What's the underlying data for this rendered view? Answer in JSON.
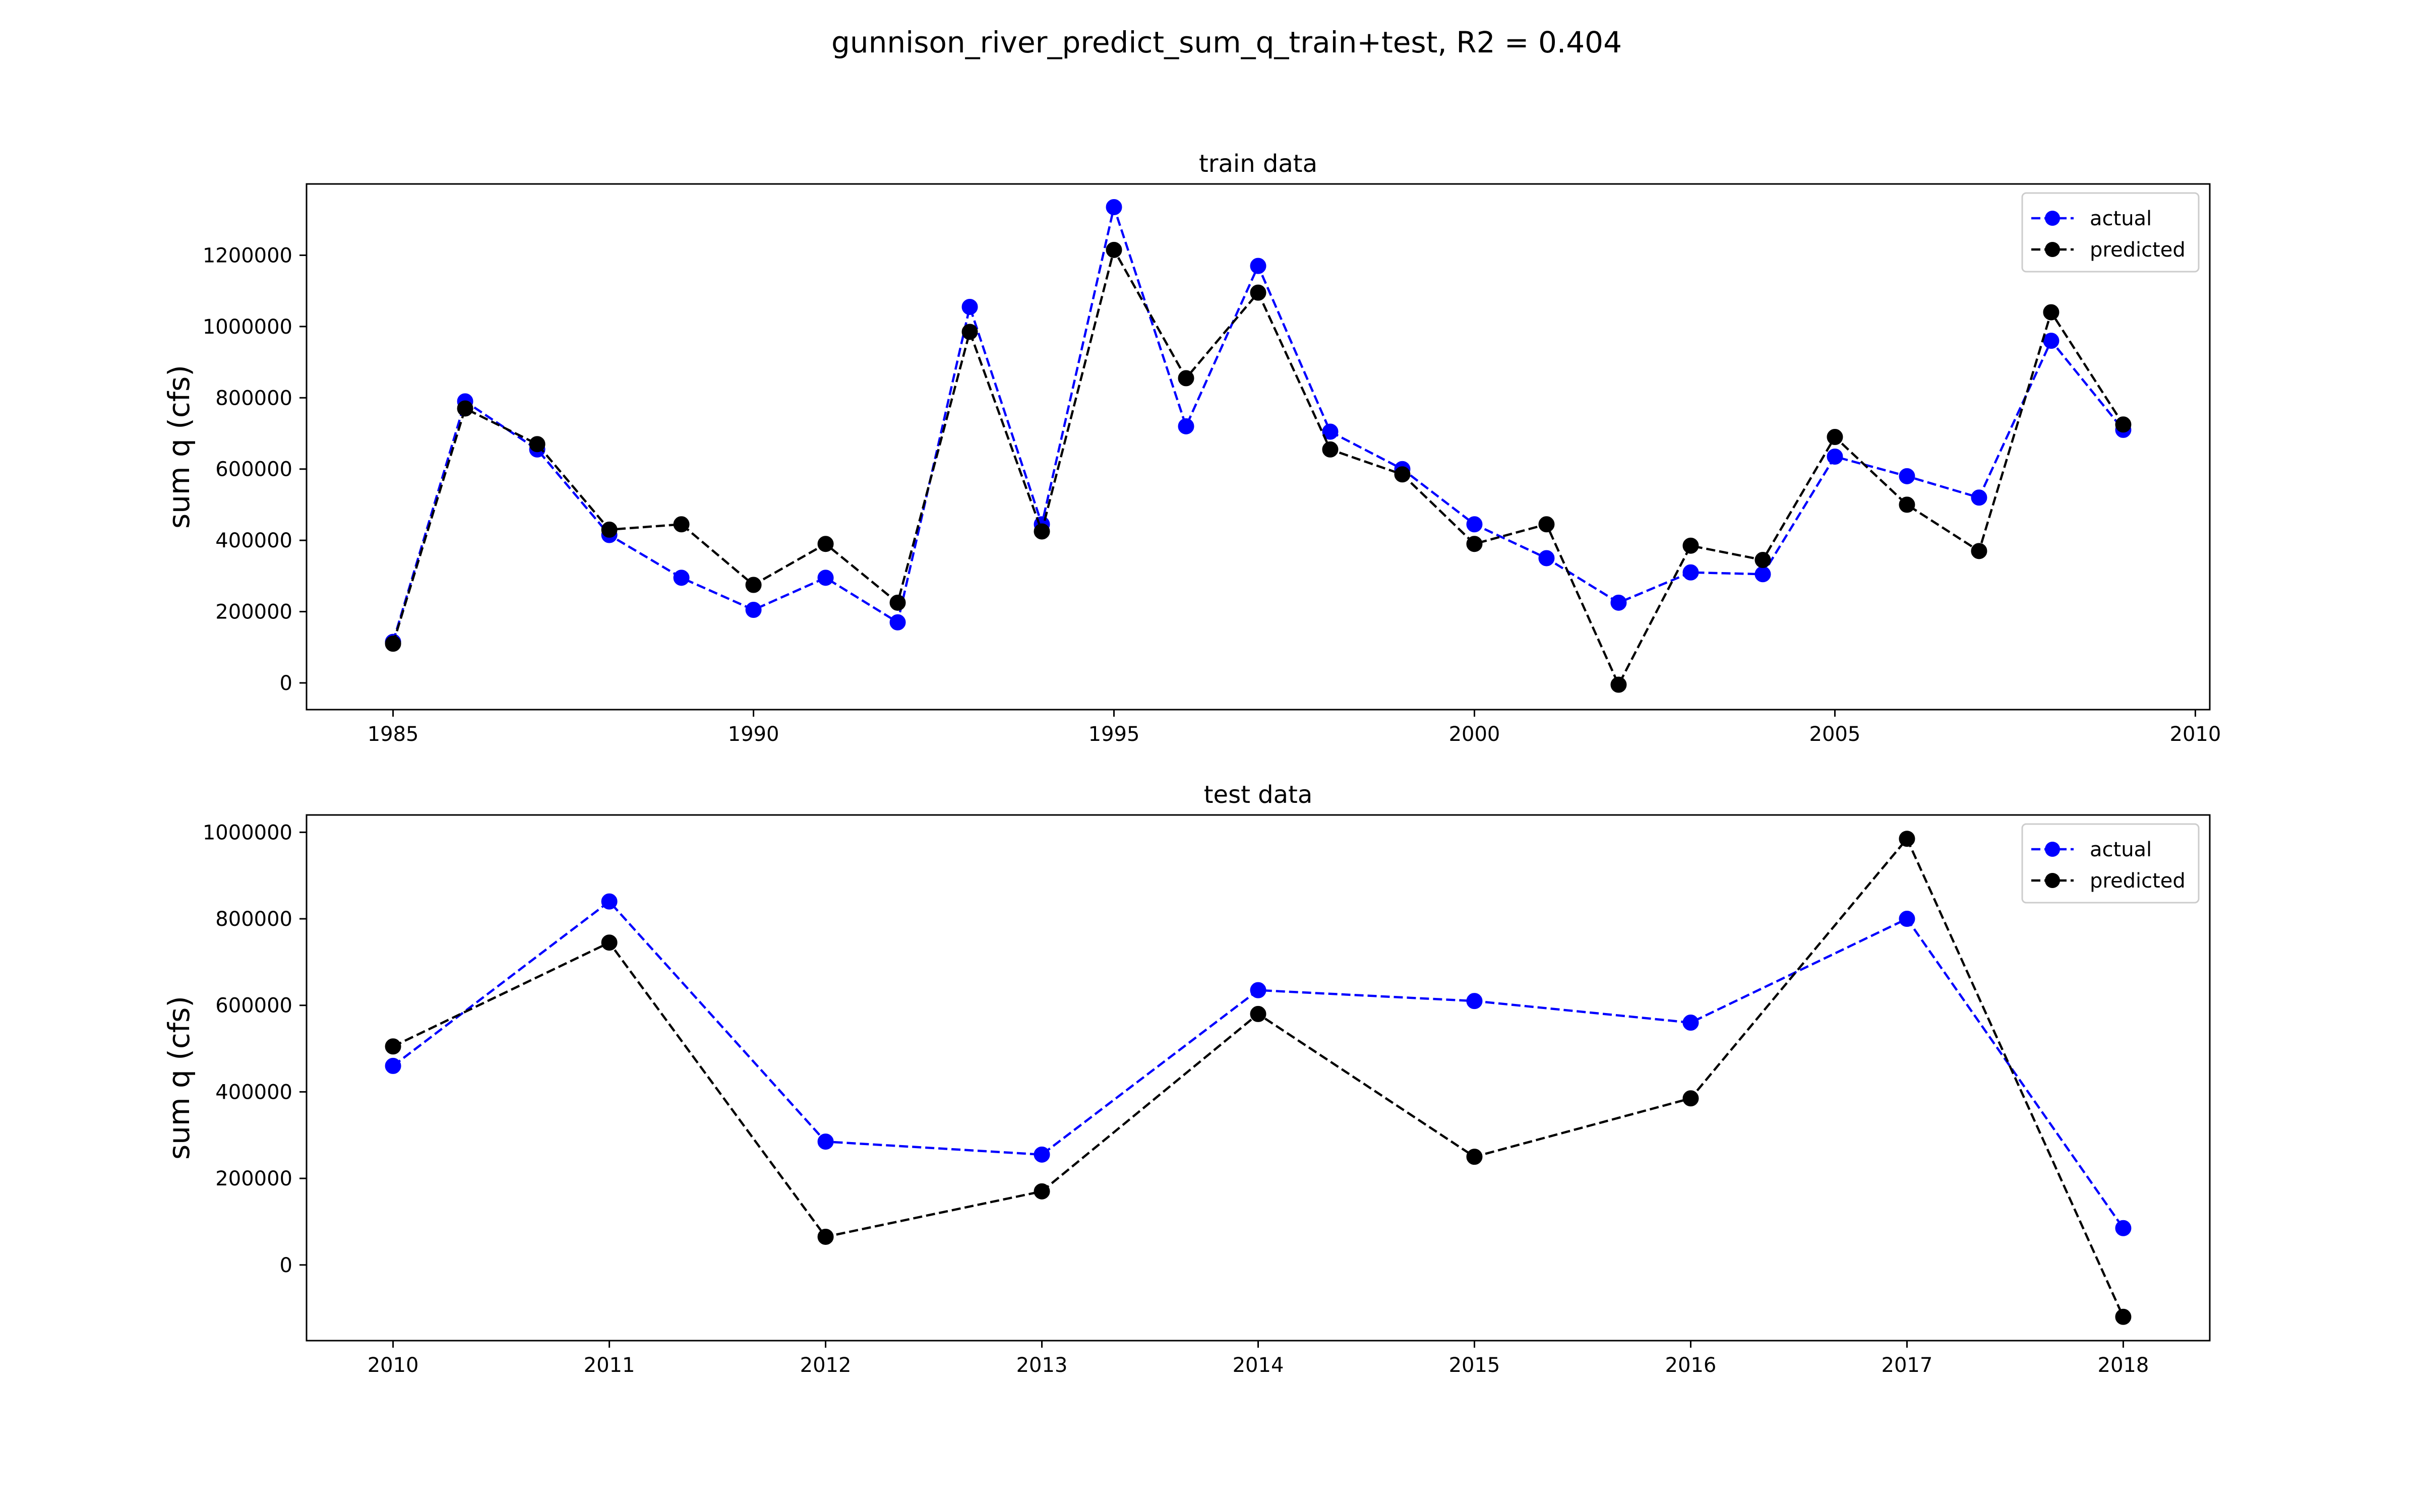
{
  "figure": {
    "suptitle": "gunnison_river_predict_sum_q_train+test, R2 = 0.404"
  },
  "chart_data": [
    {
      "type": "line",
      "title": "train data",
      "xlabel": "",
      "ylabel": "sum q (cfs)",
      "xlim": [
        1983.8,
        2010.2
      ],
      "ylim": [
        -75000,
        1400000
      ],
      "xticks": [
        1985,
        1990,
        1995,
        2000,
        2005,
        2010
      ],
      "yticks": [
        0,
        200000,
        400000,
        600000,
        800000,
        1000000,
        1200000
      ],
      "legend": "top-right",
      "grid": false,
      "x": [
        1985,
        1986,
        1987,
        1988,
        1989,
        1990,
        1991,
        1992,
        1993,
        1994,
        1995,
        1996,
        1997,
        1998,
        1999,
        2000,
        2001,
        2002,
        2003,
        2004,
        2005,
        2006,
        2007,
        2008,
        2009
      ],
      "series": [
        {
          "name": "actual",
          "color": "#0000ff",
          "values": [
            115000,
            790000,
            655000,
            415000,
            295000,
            205000,
            295000,
            170000,
            1055000,
            445000,
            1335000,
            720000,
            1170000,
            705000,
            600000,
            445000,
            350000,
            225000,
            310000,
            305000,
            635000,
            580000,
            520000,
            960000,
            710000
          ]
        },
        {
          "name": "predicted",
          "color": "#000000",
          "values": [
            110000,
            770000,
            670000,
            430000,
            445000,
            275000,
            390000,
            225000,
            985000,
            425000,
            1215000,
            855000,
            1095000,
            655000,
            585000,
            390000,
            445000,
            -5000,
            385000,
            345000,
            690000,
            500000,
            370000,
            1040000,
            725000
          ]
        }
      ]
    },
    {
      "type": "line",
      "title": "test data",
      "xlabel": "",
      "ylabel": "sum q (cfs)",
      "xlim": [
        2009.6,
        2018.4
      ],
      "ylim": [
        -175000,
        1040000
      ],
      "xticks": [
        2010,
        2011,
        2012,
        2013,
        2014,
        2015,
        2016,
        2017,
        2018
      ],
      "yticks": [
        0,
        200000,
        400000,
        600000,
        800000,
        1000000
      ],
      "legend": "top-right",
      "grid": false,
      "x": [
        2010,
        2011,
        2012,
        2013,
        2014,
        2015,
        2016,
        2017,
        2018
      ],
      "series": [
        {
          "name": "actual",
          "color": "#0000ff",
          "values": [
            460000,
            840000,
            285000,
            255000,
            635000,
            610000,
            560000,
            800000,
            85000
          ]
        },
        {
          "name": "predicted",
          "color": "#000000",
          "values": [
            505000,
            745000,
            65000,
            170000,
            580000,
            250000,
            385000,
            985000,
            -120000
          ]
        }
      ]
    }
  ]
}
